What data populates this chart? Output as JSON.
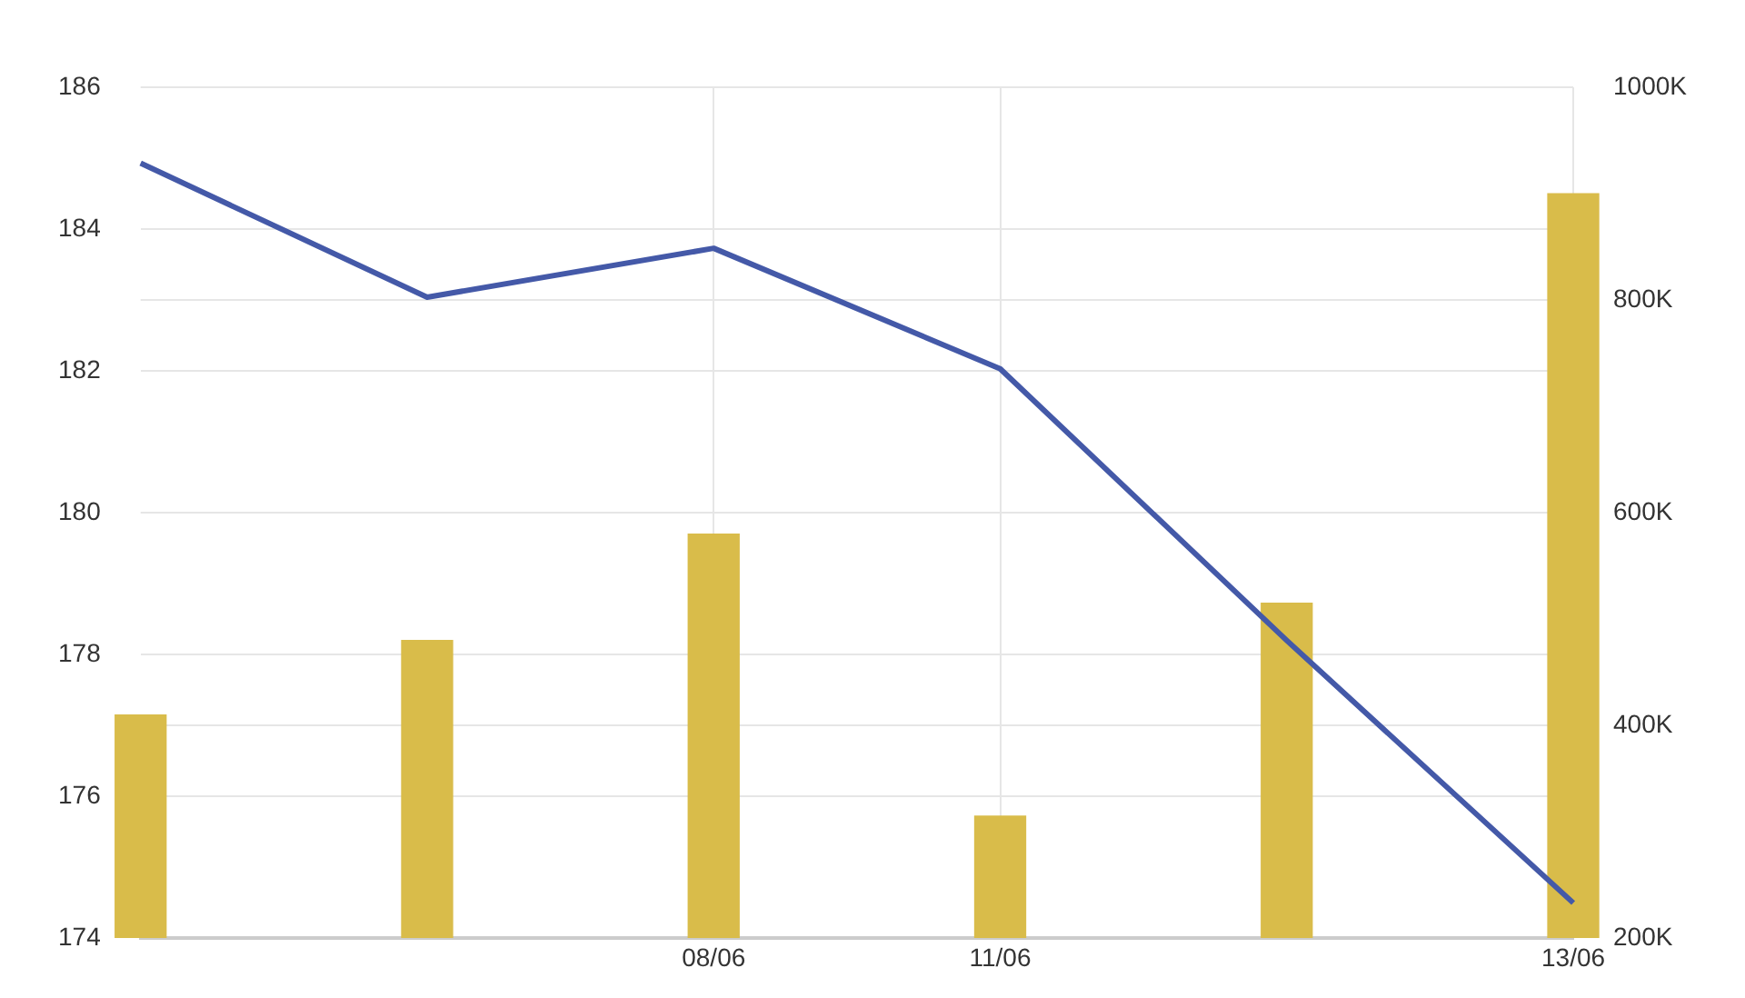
{
  "chart_data": {
    "type": "bar",
    "categories": [
      null,
      null,
      "08/06",
      "11/06",
      null,
      "13/06"
    ],
    "series": [
      {
        "axis": "y2",
        "color": "#d9bc4a",
        "values": [
          410000,
          480000,
          580000,
          315000,
          515000,
          900000
        ]
      },
      {
        "type": "line",
        "axis": "y",
        "color": "#4459a8",
        "values": [
          184.93,
          183.04,
          183.73,
          182.03,
          178.2,
          174.5
        ]
      }
    ],
    "ylim": [
      174,
      186
    ],
    "yticks": [
      174,
      176,
      178,
      180,
      182,
      184,
      186
    ],
    "y2lim": [
      200000,
      1000000
    ],
    "y2ticks": [
      {
        "value": 200000,
        "label": "200K"
      },
      {
        "value": 400000,
        "label": "400K"
      },
      {
        "value": 600000,
        "label": "600K"
      },
      {
        "value": 800000,
        "label": "800K"
      },
      {
        "value": 1000000,
        "label": "1000K"
      }
    ],
    "grid": true,
    "legend": false,
    "marker": "none",
    "line_style": "solid"
  }
}
